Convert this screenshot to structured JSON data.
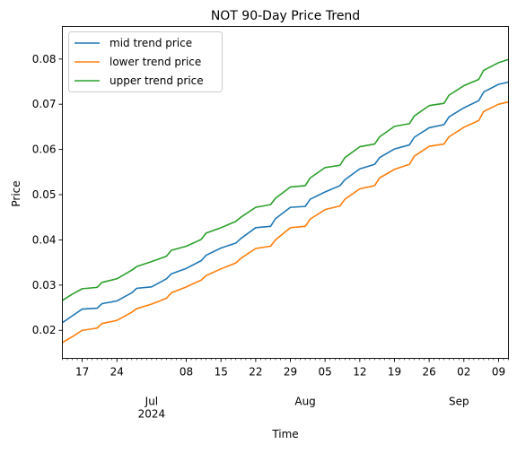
{
  "chart_data": {
    "type": "line",
    "title": "NOT 90-Day Price Trend",
    "xlabel": "Time",
    "ylabel": "Price",
    "x_start": "2024-06-13",
    "x_end": "2024-09-11",
    "xlim": [
      "2024-06-13",
      "2024-09-11"
    ],
    "ylim": [
      0.0138,
      0.0872
    ],
    "grid": false,
    "legend_position": "upper-left",
    "y_ticks": [
      {
        "value": 0.02,
        "label": "0.02"
      },
      {
        "value": 0.03,
        "label": "0.03"
      },
      {
        "value": 0.04,
        "label": "0.04"
      },
      {
        "value": 0.05,
        "label": "0.05"
      },
      {
        "value": 0.06,
        "label": "0.06"
      },
      {
        "value": 0.07,
        "label": "0.07"
      },
      {
        "value": 0.08,
        "label": "0.08"
      }
    ],
    "x_ticks": [
      {
        "date": "2024-06-17",
        "label": "17"
      },
      {
        "date": "2024-06-24",
        "label": "24"
      },
      {
        "date": "2024-07-01",
        "label": "Jul\n2024"
      },
      {
        "date": "2024-07-08",
        "label": "08"
      },
      {
        "date": "2024-07-15",
        "label": "15"
      },
      {
        "date": "2024-07-22",
        "label": "22"
      },
      {
        "date": "2024-07-29",
        "label": "29"
      },
      {
        "date": "2024-08-01",
        "label": "Aug"
      },
      {
        "date": "2024-08-05",
        "label": "05"
      },
      {
        "date": "2024-08-12",
        "label": "12"
      },
      {
        "date": "2024-08-19",
        "label": "19"
      },
      {
        "date": "2024-08-26",
        "label": "26"
      },
      {
        "date": "2024-09-01",
        "label": "Sep"
      },
      {
        "date": "2024-09-02",
        "label": "02"
      },
      {
        "date": "2024-09-09",
        "label": "09"
      }
    ],
    "series": [
      {
        "name": "mid trend price",
        "color": "#1f77b4",
        "x": [
          "2024-06-13",
          "2024-06-15",
          "2024-06-17",
          "2024-06-20",
          "2024-06-21",
          "2024-06-24",
          "2024-06-27",
          "2024-06-28",
          "2024-07-01",
          "2024-07-04",
          "2024-07-05",
          "2024-07-08",
          "2024-07-11",
          "2024-07-12",
          "2024-07-15",
          "2024-07-18",
          "2024-07-19",
          "2024-07-22",
          "2024-07-25",
          "2024-07-26",
          "2024-07-29",
          "2024-08-01",
          "2024-08-02",
          "2024-08-05",
          "2024-08-08",
          "2024-08-09",
          "2024-08-12",
          "2024-08-15",
          "2024-08-16",
          "2024-08-19",
          "2024-08-22",
          "2024-08-23",
          "2024-08-26",
          "2024-08-29",
          "2024-08-30",
          "2024-09-02",
          "2024-09-05",
          "2024-09-06",
          "2024-09-09",
          "2024-09-11"
        ],
        "y": [
          0.0217,
          0.0232,
          0.0247,
          0.0249,
          0.0259,
          0.0265,
          0.0283,
          0.0293,
          0.0296,
          0.0314,
          0.0325,
          0.0337,
          0.0354,
          0.0366,
          0.0382,
          0.0393,
          0.0403,
          0.0427,
          0.043,
          0.0447,
          0.0472,
          0.0474,
          0.049,
          0.0506,
          0.052,
          0.0533,
          0.0557,
          0.0567,
          0.0582,
          0.0601,
          0.061,
          0.0627,
          0.0648,
          0.0655,
          0.0672,
          0.0692,
          0.0708,
          0.0727,
          0.0744,
          0.0749
        ]
      },
      {
        "name": "lower trend price",
        "color": "#ff7f0e",
        "x": [
          "2024-06-13",
          "2024-06-15",
          "2024-06-17",
          "2024-06-20",
          "2024-06-21",
          "2024-06-24",
          "2024-06-27",
          "2024-06-28",
          "2024-07-01",
          "2024-07-04",
          "2024-07-05",
          "2024-07-08",
          "2024-07-11",
          "2024-07-12",
          "2024-07-15",
          "2024-07-18",
          "2024-07-19",
          "2024-07-22",
          "2024-07-25",
          "2024-07-26",
          "2024-07-29",
          "2024-08-01",
          "2024-08-02",
          "2024-08-05",
          "2024-08-08",
          "2024-08-09",
          "2024-08-12",
          "2024-08-15",
          "2024-08-16",
          "2024-08-19",
          "2024-08-22",
          "2024-08-23",
          "2024-08-26",
          "2024-08-29",
          "2024-08-30",
          "2024-09-02",
          "2024-09-05",
          "2024-09-06",
          "2024-09-09",
          "2024-09-11"
        ],
        "y": [
          0.0173,
          0.0186,
          0.02,
          0.0205,
          0.0215,
          0.0222,
          0.024,
          0.0248,
          0.0258,
          0.0271,
          0.0283,
          0.0296,
          0.0311,
          0.0321,
          0.0336,
          0.0349,
          0.0359,
          0.0381,
          0.0386,
          0.04,
          0.0427,
          0.043,
          0.0446,
          0.0467,
          0.0475,
          0.049,
          0.0513,
          0.052,
          0.0537,
          0.0556,
          0.0567,
          0.0585,
          0.0607,
          0.0612,
          0.0628,
          0.0649,
          0.0664,
          0.0684,
          0.07,
          0.0705
        ]
      },
      {
        "name": "upper trend price",
        "color": "#2ca02c",
        "x": [
          "2024-06-13",
          "2024-06-15",
          "2024-06-17",
          "2024-06-20",
          "2024-06-21",
          "2024-06-24",
          "2024-06-27",
          "2024-06-28",
          "2024-07-01",
          "2024-07-04",
          "2024-07-05",
          "2024-07-08",
          "2024-07-11",
          "2024-07-12",
          "2024-07-15",
          "2024-07-18",
          "2024-07-19",
          "2024-07-22",
          "2024-07-25",
          "2024-07-26",
          "2024-07-29",
          "2024-08-01",
          "2024-08-02",
          "2024-08-05",
          "2024-08-08",
          "2024-08-09",
          "2024-08-12",
          "2024-08-15",
          "2024-08-16",
          "2024-08-19",
          "2024-08-22",
          "2024-08-23",
          "2024-08-26",
          "2024-08-29",
          "2024-08-30",
          "2024-09-02",
          "2024-09-05",
          "2024-09-06",
          "2024-09-09",
          "2024-09-11"
        ],
        "y": [
          0.0266,
          0.028,
          0.0292,
          0.0295,
          0.0306,
          0.0314,
          0.0333,
          0.0341,
          0.0352,
          0.0364,
          0.0377,
          0.0386,
          0.0401,
          0.0415,
          0.0427,
          0.0441,
          0.045,
          0.0472,
          0.0478,
          0.0492,
          0.0517,
          0.052,
          0.0537,
          0.056,
          0.0565,
          0.0582,
          0.0606,
          0.0612,
          0.0628,
          0.0651,
          0.0657,
          0.0674,
          0.0697,
          0.0702,
          0.072,
          0.0741,
          0.0755,
          0.0775,
          0.0792,
          0.0799
        ]
      }
    ]
  }
}
